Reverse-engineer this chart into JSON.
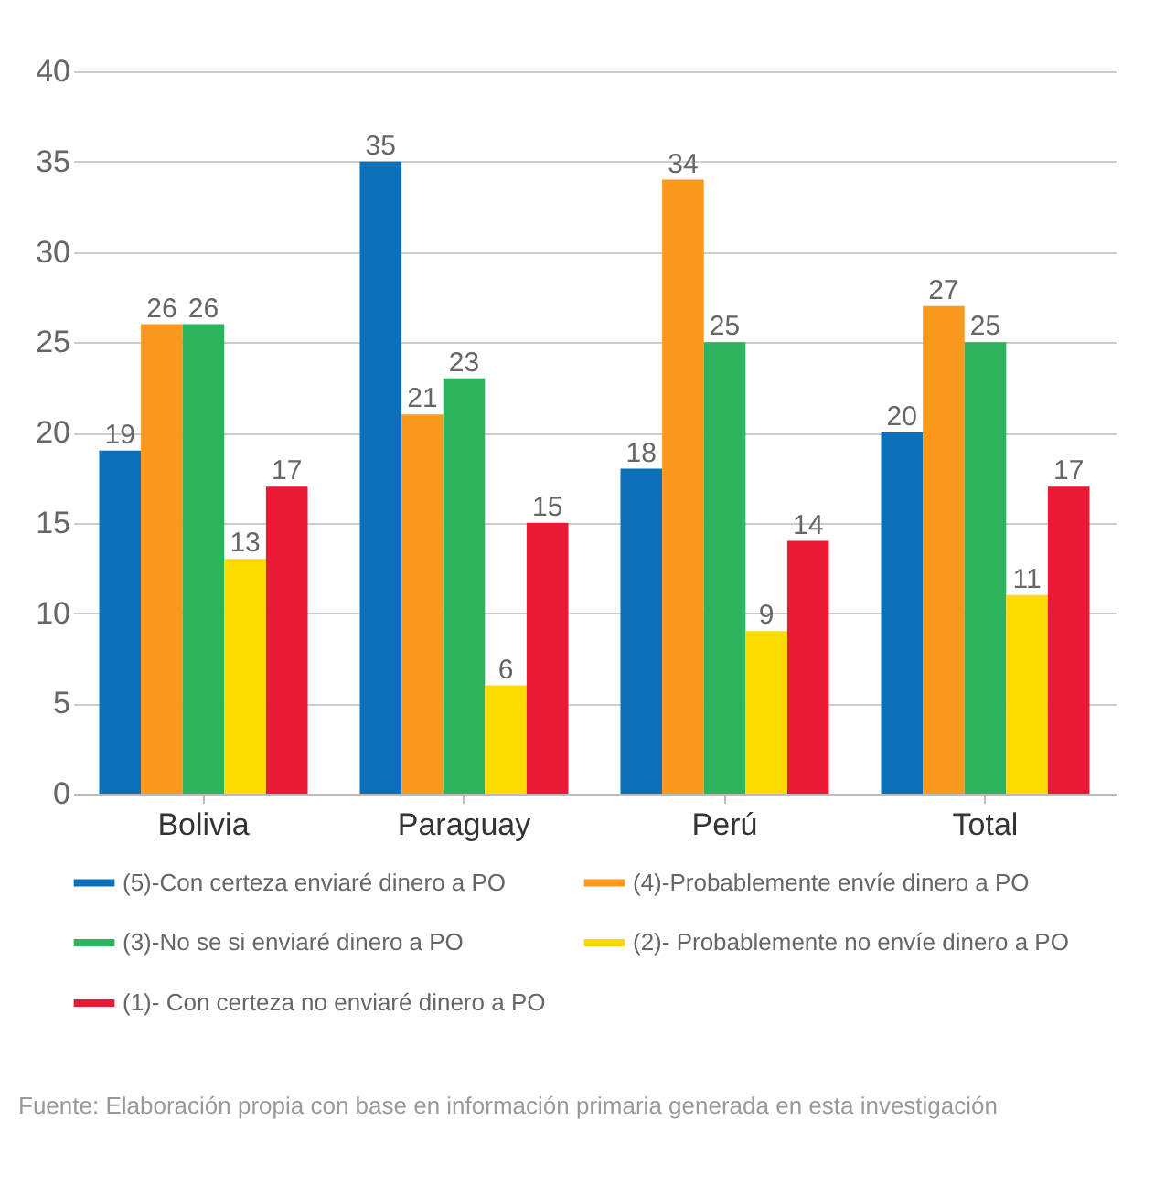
{
  "chart_data": {
    "type": "bar",
    "categories": [
      "Bolivia",
      "Paraguay",
      "Perú",
      "Total"
    ],
    "series": [
      {
        "name": "(5)-Con certeza enviaré dinero a PO",
        "color": "#0a70b9",
        "values": [
          19,
          35,
          18,
          20
        ]
      },
      {
        "name": "(4)-Probablemente envíe dinero a PO",
        "color": "#fb991c",
        "values": [
          26,
          21,
          34,
          27
        ]
      },
      {
        "name": "(3)-No se si enviaré dinero a PO",
        "color": "#2bb35e",
        "values": [
          26,
          23,
          25,
          25
        ]
      },
      {
        "name": "(2)- Probablemente no envíe dinero a PO",
        "color": "#fedb00",
        "values": [
          13,
          6,
          9,
          11
        ]
      },
      {
        "name": "(1)- Con certeza no enviaré dinero a PO",
        "color": "#ea1a37",
        "values": [
          17,
          15,
          14,
          17
        ]
      }
    ],
    "ylim": [
      0,
      40
    ],
    "yticks": [
      0,
      5,
      10,
      15,
      20,
      25,
      30,
      35,
      40
    ],
    "grid": "y",
    "legend": "bottom",
    "data_labels": true,
    "annotations": [
      "Fuente: Elaboración propia con base en información primaria generada en esta investigación"
    ]
  }
}
